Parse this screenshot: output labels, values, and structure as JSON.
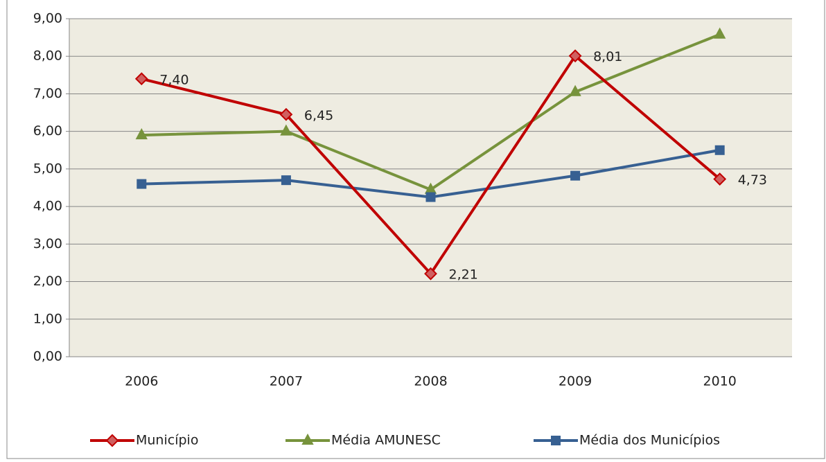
{
  "chart_data": {
    "type": "line",
    "categories": [
      "2006",
      "2007",
      "2008",
      "2009",
      "2010"
    ],
    "series": [
      {
        "name": "Município",
        "color": "#c00000",
        "marker": "diamond",
        "values": [
          7.4,
          6.45,
          2.21,
          8.01,
          4.73
        ],
        "value_labels": [
          "7,40",
          "6,45",
          "2,21",
          "8,01",
          "4,73"
        ]
      },
      {
        "name": "Média AMUNESC",
        "color": "#77933c",
        "marker": "triangle",
        "values": [
          5.9,
          6.0,
          4.45,
          7.05,
          8.58
        ]
      },
      {
        "name": "Média dos Municípios",
        "color": "#376092",
        "marker": "square",
        "values": [
          4.6,
          4.7,
          4.25,
          4.82,
          5.5
        ]
      }
    ],
    "ylim": [
      0,
      9
    ],
    "yticks": [
      {
        "value": 0,
        "label": "0,00"
      },
      {
        "value": 1,
        "label": "1,00"
      },
      {
        "value": 2,
        "label": "2,00"
      },
      {
        "value": 3,
        "label": "3,00"
      },
      {
        "value": 4,
        "label": "4,00"
      },
      {
        "value": 5,
        "label": "5,00"
      },
      {
        "value": 6,
        "label": "6,00"
      },
      {
        "value": 7,
        "label": "7,00"
      },
      {
        "value": 8,
        "label": "8,00"
      },
      {
        "value": 9,
        "label": "9,00"
      }
    ],
    "grid": true,
    "legend": "bottom"
  }
}
